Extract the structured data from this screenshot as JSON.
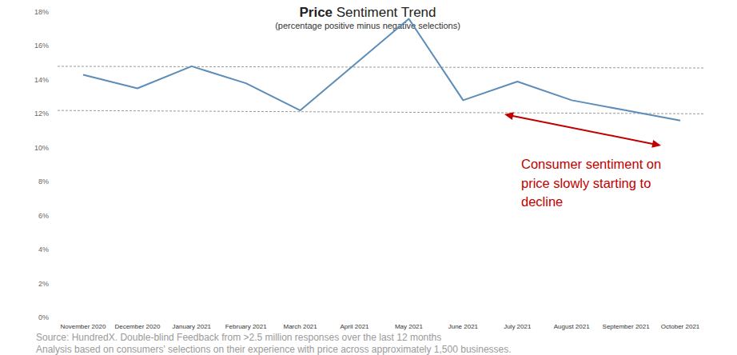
{
  "chart_data": {
    "type": "line",
    "title": "Price Sentiment Trend",
    "subtitle": "(percentage positive minus negative selections)",
    "categories": [
      "November 2020",
      "December 2020",
      "January 2021",
      "February 2021",
      "March 2021",
      "April 2021",
      "May 2021",
      "June 2021",
      "July 2021",
      "August 2021",
      "September 2021",
      "October 2021"
    ],
    "values": [
      14.3,
      13.5,
      14.8,
      13.8,
      12.2,
      14.9,
      17.6,
      12.8,
      13.9,
      12.8,
      12.2,
      11.6
    ],
    "color": "#5b8db8",
    "ylim": [
      0,
      18
    ],
    "yticks": [
      {
        "value": 0,
        "label": "0%"
      },
      {
        "value": 2,
        "label": "2%"
      },
      {
        "value": 4,
        "label": "4%"
      },
      {
        "value": 6,
        "label": "6%"
      },
      {
        "value": 8,
        "label": "8%"
      },
      {
        "value": 10,
        "label": "10%"
      },
      {
        "value": 12,
        "label": "12%"
      },
      {
        "value": 14,
        "label": "14%"
      },
      {
        "value": 16,
        "label": "16%"
      },
      {
        "value": 18,
        "label": "18%"
      }
    ],
    "grid": false,
    "reference_lines": [
      {
        "values": [
          14.8,
          14.7
        ]
      },
      {
        "values": [
          12.2,
          12.0
        ]
      }
    ],
    "annotation": [
      "Consumer sentiment on",
      "price slowly starting to",
      "decline"
    ],
    "source": [
      "Source:  HundredX.  Double-blind Feedback from >2.5 million responses over the last 12 months",
      "Analysis based on consumers' selections on their experience with price across approximately 1,500 businesses."
    ]
  }
}
